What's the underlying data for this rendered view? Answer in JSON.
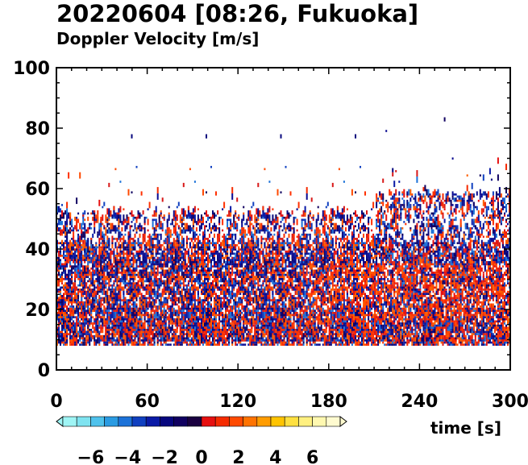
{
  "header": {
    "title": "20220604 [08:26, Fukuoka]",
    "subtitle": "Doppler Velocity [m/s]"
  },
  "chart_data": {
    "type": "heatmap",
    "title": "20220604 [08:26, Fukuoka]",
    "subtitle": "Doppler Velocity [m/s]",
    "xlabel": "time [s]",
    "ylabel": "",
    "xlim": [
      0,
      300
    ],
    "ylim": [
      0,
      100
    ],
    "x_ticks": [
      0,
      60,
      120,
      180,
      240,
      300
    ],
    "y_ticks": [
      0,
      20,
      40,
      60,
      80,
      100
    ],
    "grid": false,
    "echo_bottom": 8,
    "echo_top_typical": 60,
    "echo_top_max": 87,
    "colorbar": {
      "label": "Doppler Velocity [m/s]",
      "range": [
        -7.5,
        7.5
      ],
      "tick_values": [
        -6,
        -4,
        -2,
        0,
        2,
        4,
        6
      ],
      "tick_labels": [
        "−6",
        "−4",
        "−2",
        "0",
        "2",
        "4",
        "6"
      ],
      "colors": [
        "#9ff5f5",
        "#7fe3f0",
        "#4fc2ec",
        "#2a9be2",
        "#1c72d8",
        "#1040c0",
        "#0a1aa6",
        "#07077e",
        "#100060",
        "#1a0040",
        "#e61010",
        "#f52b00",
        "#ff4a00",
        "#ff7300",
        "#ff9c00",
        "#ffc400",
        "#ffe040",
        "#fff080",
        "#fff8b0",
        "#fffbd0"
      ]
    }
  }
}
